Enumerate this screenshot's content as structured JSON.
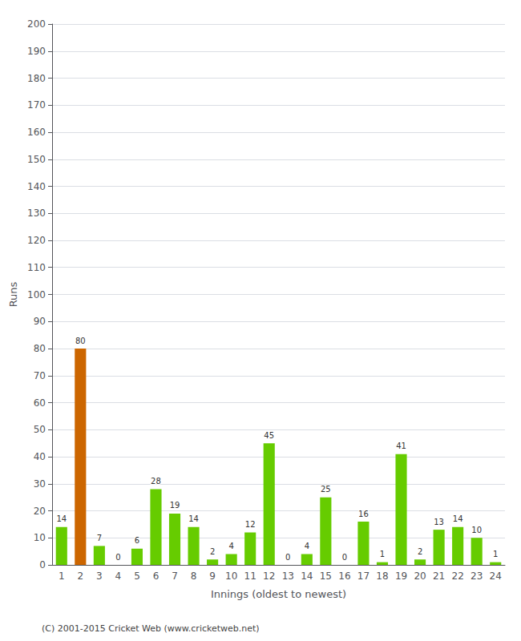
{
  "chart_data": {
    "type": "bar",
    "xlabel": "Innings (oldest to newest)",
    "ylabel": "Runs",
    "categories": [
      "1",
      "2",
      "3",
      "4",
      "5",
      "6",
      "7",
      "8",
      "9",
      "10",
      "11",
      "12",
      "13",
      "14",
      "15",
      "16",
      "17",
      "18",
      "19",
      "20",
      "21",
      "22",
      "23",
      "24"
    ],
    "values": [
      14,
      80,
      7,
      0,
      6,
      28,
      19,
      14,
      2,
      4,
      12,
      45,
      0,
      4,
      25,
      0,
      16,
      1,
      41,
      2,
      13,
      14,
      10,
      1
    ],
    "colors": [
      "#66cc00",
      "#cc6600",
      "#66cc00",
      "#66cc00",
      "#66cc00",
      "#66cc00",
      "#66cc00",
      "#66cc00",
      "#66cc00",
      "#66cc00",
      "#66cc00",
      "#66cc00",
      "#66cc00",
      "#66cc00",
      "#66cc00",
      "#66cc00",
      "#66cc00",
      "#66cc00",
      "#66cc00",
      "#66cc00",
      "#66cc00",
      "#66cc00",
      "#66cc00",
      "#66cc00"
    ],
    "ylim": [
      0,
      200
    ],
    "yticks": [
      0,
      10,
      20,
      30,
      40,
      50,
      60,
      70,
      80,
      90,
      100,
      110,
      120,
      130,
      140,
      150,
      160,
      170,
      180,
      190,
      200
    ],
    "grid": true,
    "data_labels": true,
    "annotations": [
      "(C) 2001-2015 Cricket Web (www.cricketweb.net)"
    ]
  }
}
